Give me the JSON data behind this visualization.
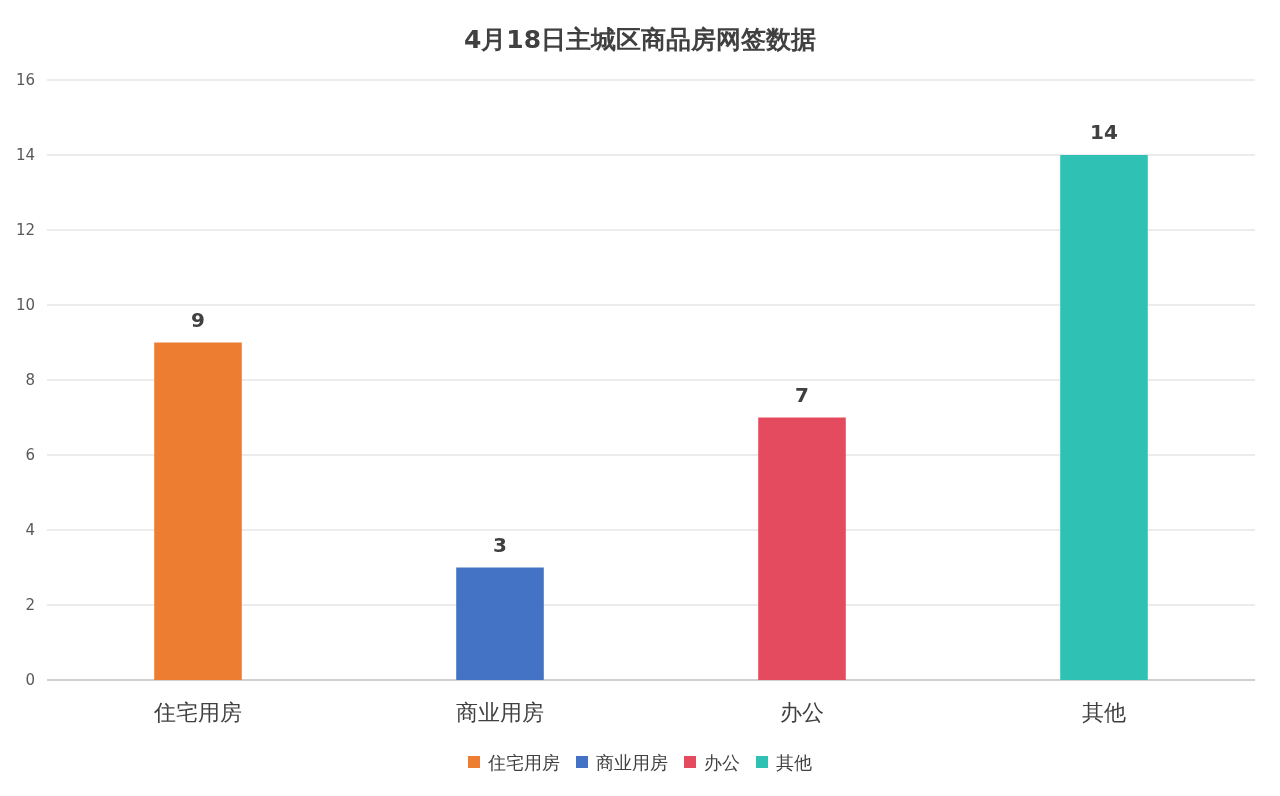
{
  "chart_data": {
    "type": "bar",
    "title": "4月18日主城区商品房网签数据",
    "categories": [
      "住宅用房",
      "商业用房",
      "办公",
      "其他"
    ],
    "series": [
      {
        "name": "住宅用房",
        "color": "#ed7d31",
        "values": [
          9,
          null,
          null,
          null
        ]
      },
      {
        "name": "商业用房",
        "color": "#4472c4",
        "values": [
          null,
          3,
          null,
          null
        ]
      },
      {
        "name": "办公",
        "color": "#e54b5f",
        "values": [
          null,
          null,
          7,
          null
        ]
      },
      {
        "name": "其他",
        "color": "#2ec1b4",
        "values": [
          null,
          null,
          null,
          14
        ]
      }
    ],
    "ylim": [
      0,
      16
    ],
    "yticks": [
      0,
      2,
      4,
      6,
      8,
      10,
      12,
      14,
      16
    ],
    "grid": "y",
    "legend": "bottom",
    "data_labels": true
  }
}
